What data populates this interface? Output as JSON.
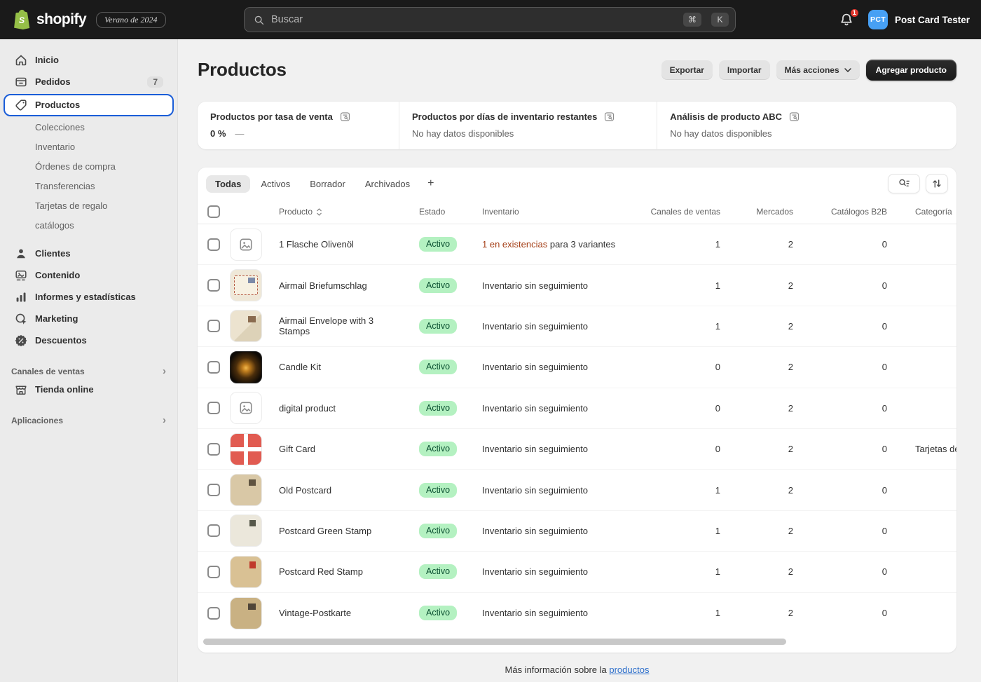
{
  "colors": {
    "brand_green": "#95BF47",
    "topbar_bg": "#1a1a1a",
    "accent_blue": "#1a5dd8",
    "success_badge_bg": "#b4f1c1",
    "success_badge_text": "#0c5132",
    "critical_text": "#a43e16",
    "notification_badge_red": "#e0352c",
    "avatar_blue": "#47a0f4"
  },
  "topbar": {
    "logo_text": "shopify",
    "edition_badge": "Verano de 2024",
    "search": {
      "placeholder": "Buscar",
      "shortcut_keys": [
        "⌘",
        "K"
      ]
    },
    "notification_count": "1",
    "user": {
      "initials": "PCT",
      "name": "Post Card Tester"
    }
  },
  "sidebar": {
    "items": [
      {
        "label": "Inicio",
        "icon": "home-icon"
      },
      {
        "label": "Pedidos",
        "icon": "orders-icon",
        "badge": "7"
      },
      {
        "label": "Productos",
        "icon": "tag-icon",
        "selected": true,
        "children": [
          "Colecciones",
          "Inventario",
          "Órdenes de compra",
          "Transferencias",
          "Tarjetas de regalo",
          "catálogos"
        ]
      },
      {
        "label": "Clientes",
        "icon": "customers-icon"
      },
      {
        "label": "Contenido",
        "icon": "content-icon"
      },
      {
        "label": "Informes y estadísticas",
        "icon": "analytics-icon"
      },
      {
        "label": "Marketing",
        "icon": "marketing-icon"
      },
      {
        "label": "Descuentos",
        "icon": "discounts-icon"
      }
    ],
    "sections": [
      {
        "label": "Canales de ventas",
        "items": [
          {
            "label": "Tienda online",
            "icon": "store-icon"
          }
        ]
      },
      {
        "label": "Aplicaciones",
        "items": []
      }
    ]
  },
  "page": {
    "title": "Productos",
    "actions": {
      "export": "Exportar",
      "import": "Importar",
      "more": "Más acciones",
      "primary": "Agregar producto"
    }
  },
  "insights": [
    {
      "title": "Productos por tasa de venta",
      "value": "0 %",
      "trend": "—"
    },
    {
      "title": "Productos por días de inventario restantes",
      "value": "No hay datos disponibles"
    },
    {
      "title": "Análisis de producto ABC",
      "value": "No hay datos disponibles"
    }
  ],
  "table": {
    "tabs": [
      {
        "label": "Todas",
        "selected": true
      },
      {
        "label": "Activos"
      },
      {
        "label": "Borrador"
      },
      {
        "label": "Archivados"
      }
    ],
    "add_view_label": "+",
    "columns": [
      "Producto",
      "Estado",
      "Inventario",
      "Canales de ventas",
      "Mercados",
      "Catálogos B2B",
      "Categoría"
    ],
    "rows": [
      {
        "name": "1 Flasche Olivenöl",
        "thumb": "placeholder",
        "status": "Activo",
        "inventory_alert": "1 en existencias",
        "inventory": "para 3 variantes",
        "channels": "1",
        "markets": "2",
        "b2b": "0",
        "category": ""
      },
      {
        "name": "Airmail Briefumschlag",
        "thumb": "airmail-envelope",
        "status": "Activo",
        "inventory": "Inventario sin seguimiento",
        "channels": "1",
        "markets": "2",
        "b2b": "0",
        "category": ""
      },
      {
        "name": "Airmail Envelope with 3 Stamps",
        "thumb": "airmail-stamps",
        "status": "Activo",
        "inventory": "Inventario sin seguimiento",
        "channels": "1",
        "markets": "2",
        "b2b": "0",
        "category": ""
      },
      {
        "name": "Candle Kit",
        "thumb": "candle",
        "status": "Activo",
        "inventory": "Inventario sin seguimiento",
        "channels": "0",
        "markets": "2",
        "b2b": "0",
        "category": ""
      },
      {
        "name": "digital product",
        "thumb": "placeholder",
        "status": "Activo",
        "inventory": "Inventario sin seguimiento",
        "channels": "0",
        "markets": "2",
        "b2b": "0",
        "category": ""
      },
      {
        "name": "Gift Card",
        "thumb": "gift-card",
        "status": "Activo",
        "inventory": "Inventario sin seguimiento",
        "channels": "0",
        "markets": "2",
        "b2b": "0",
        "category": "Tarjetas de regalo"
      },
      {
        "name": "Old Postcard",
        "thumb": "postcard-old",
        "status": "Activo",
        "inventory": "Inventario sin seguimiento",
        "channels": "1",
        "markets": "2",
        "b2b": "0",
        "category": ""
      },
      {
        "name": "Postcard Green Stamp",
        "thumb": "postcard-green",
        "status": "Activo",
        "inventory": "Inventario sin seguimiento",
        "channels": "1",
        "markets": "2",
        "b2b": "0",
        "category": ""
      },
      {
        "name": "Postcard Red Stamp",
        "thumb": "postcard-red",
        "status": "Activo",
        "inventory": "Inventario sin seguimiento",
        "channels": "1",
        "markets": "2",
        "b2b": "0",
        "category": ""
      },
      {
        "name": "Vintage-Postkarte",
        "thumb": "postcard-vintage",
        "status": "Activo",
        "inventory": "Inventario sin seguimiento",
        "channels": "1",
        "markets": "2",
        "b2b": "0",
        "category": ""
      }
    ],
    "footer_text": "Más información sobre la",
    "footer_link": "productos"
  }
}
